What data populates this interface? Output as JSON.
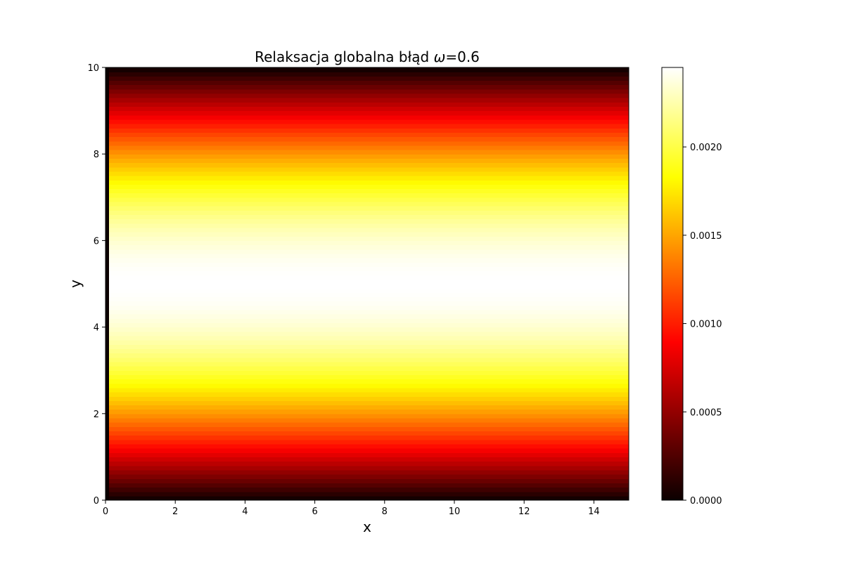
{
  "chart_data": {
    "type": "heatmap",
    "title_prefix": "Relaksacja globalna błąd ",
    "title_symbol": "ω",
    "title_suffix": "=0.6",
    "xlabel": "x",
    "ylabel": "y",
    "xlim": [
      0,
      15
    ],
    "ylim": [
      0,
      10
    ],
    "xticks": [
      0,
      2,
      4,
      6,
      8,
      10,
      12,
      14
    ],
    "yticks": [
      0,
      2,
      4,
      6,
      8,
      10
    ],
    "colormap": "hot",
    "colorbar": {
      "range": [
        0,
        0.00245
      ],
      "ticks": [
        0,
        0.0005,
        0.001,
        0.0015,
        0.002
      ],
      "tick_labels": [
        "0.0000",
        "0.0005",
        "0.0010",
        "0.0015",
        "0.0020"
      ]
    },
    "field": {
      "description_shape": "varies with y only",
      "peak_y": 5,
      "peak_value": 0.00245,
      "zero_at_y": [
        0,
        10
      ],
      "zero_at_x": [
        0
      ]
    },
    "grid_resolution": {
      "nx": 150,
      "ny": 100
    }
  }
}
